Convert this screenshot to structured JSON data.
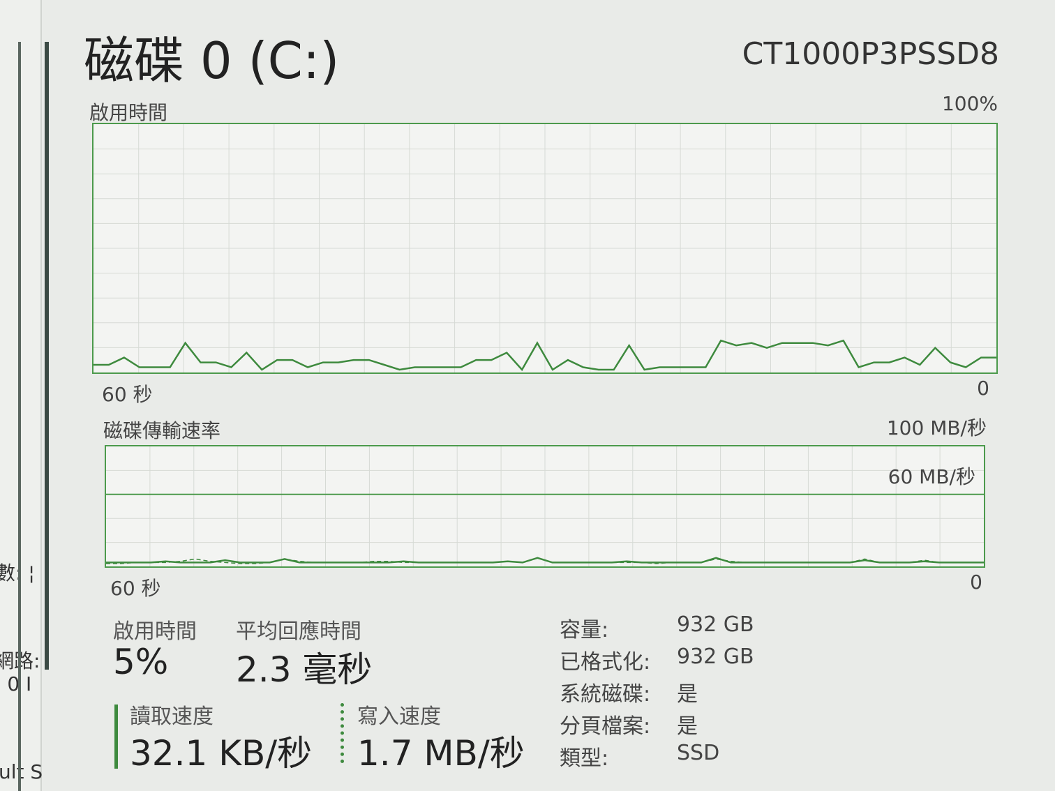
{
  "sidebar_fragments": [
    "數: ¦",
    "網路:",
    ": 0 I",
    "ult S"
  ],
  "header": {
    "title": "磁碟 0 (C:)",
    "model": "CT1000P3PSSD8"
  },
  "active_chart": {
    "label": "啟用時間",
    "max_label": "100%",
    "time_label": "60 秒",
    "min_label": "0",
    "chart_data": {
      "type": "line",
      "ylim": [
        0,
        100
      ],
      "unit": "%",
      "x_range_seconds": [
        60,
        0
      ],
      "values": [
        2,
        2,
        5,
        1,
        1,
        1,
        11,
        3,
        3,
        1,
        7,
        0,
        4,
        4,
        1,
        3,
        3,
        4,
        4,
        2,
        0,
        1,
        1,
        1,
        1,
        4,
        4,
        7,
        0,
        11,
        0,
        4,
        1,
        0,
        0,
        10,
        0,
        1,
        1,
        1,
        1,
        12,
        10,
        11,
        9,
        11,
        11,
        11,
        10,
        12,
        1,
        3,
        3,
        5,
        2,
        9,
        3,
        1,
        5,
        5
      ]
    }
  },
  "transfer_chart": {
    "label": "磁碟傳輸速率",
    "max_label": "100 MB/秒",
    "mid_label": "60 MB/秒",
    "time_label": "60 秒",
    "min_label": "0",
    "chart_data": {
      "type": "line",
      "ylim": [
        0,
        100
      ],
      "unit": "MB/秒",
      "x_range_seconds": [
        60,
        0
      ],
      "series": [
        {
          "values": [
            1,
            1,
            1,
            1,
            2,
            1,
            1,
            1,
            3,
            1,
            1,
            1,
            4,
            1,
            1,
            1,
            1,
            1,
            1,
            1,
            2,
            1,
            1,
            1,
            1,
            1,
            1,
            2,
            1,
            5,
            1,
            1,
            1,
            1,
            1,
            2,
            1,
            1,
            1,
            1,
            1,
            5,
            1,
            1,
            1,
            1,
            1,
            1,
            1,
            1,
            1,
            3,
            1,
            1,
            1,
            2,
            1,
            1,
            1,
            1
          ]
        },
        {
          "values": [
            0,
            0,
            1,
            1,
            1,
            2,
            4,
            2,
            1,
            0,
            0,
            1,
            4,
            2,
            1,
            1,
            1,
            1,
            2,
            2,
            1,
            1,
            1,
            1,
            1,
            1,
            1,
            2,
            1,
            5,
            1,
            1,
            1,
            1,
            1,
            1,
            1,
            0,
            1,
            1,
            1,
            4,
            2,
            1,
            1,
            1,
            1,
            1,
            1,
            1,
            1,
            4,
            1,
            1,
            1,
            3,
            1,
            1,
            1,
            1
          ]
        }
      ]
    }
  },
  "stats": {
    "active_time_label": "啟用時間",
    "active_time_value": "5%",
    "response_label": "平均回應時間",
    "response_value": "2.3 毫秒",
    "read_label": "讀取速度",
    "read_value": "32.1 KB/秒",
    "write_label": "寫入速度",
    "write_value": "1.7 MB/秒"
  },
  "properties": [
    {
      "key": "容量:",
      "value": "932 GB"
    },
    {
      "key": "已格式化:",
      "value": "932 GB"
    },
    {
      "key": "系統磁碟:",
      "value": "是"
    },
    {
      "key": "分頁檔案:",
      "value": "是"
    },
    {
      "key": "類型:",
      "value": "SSD"
    }
  ],
  "colors": {
    "accent": "#4c9a4c",
    "line": "#3e8a3e",
    "grid": "#d6dad5"
  }
}
